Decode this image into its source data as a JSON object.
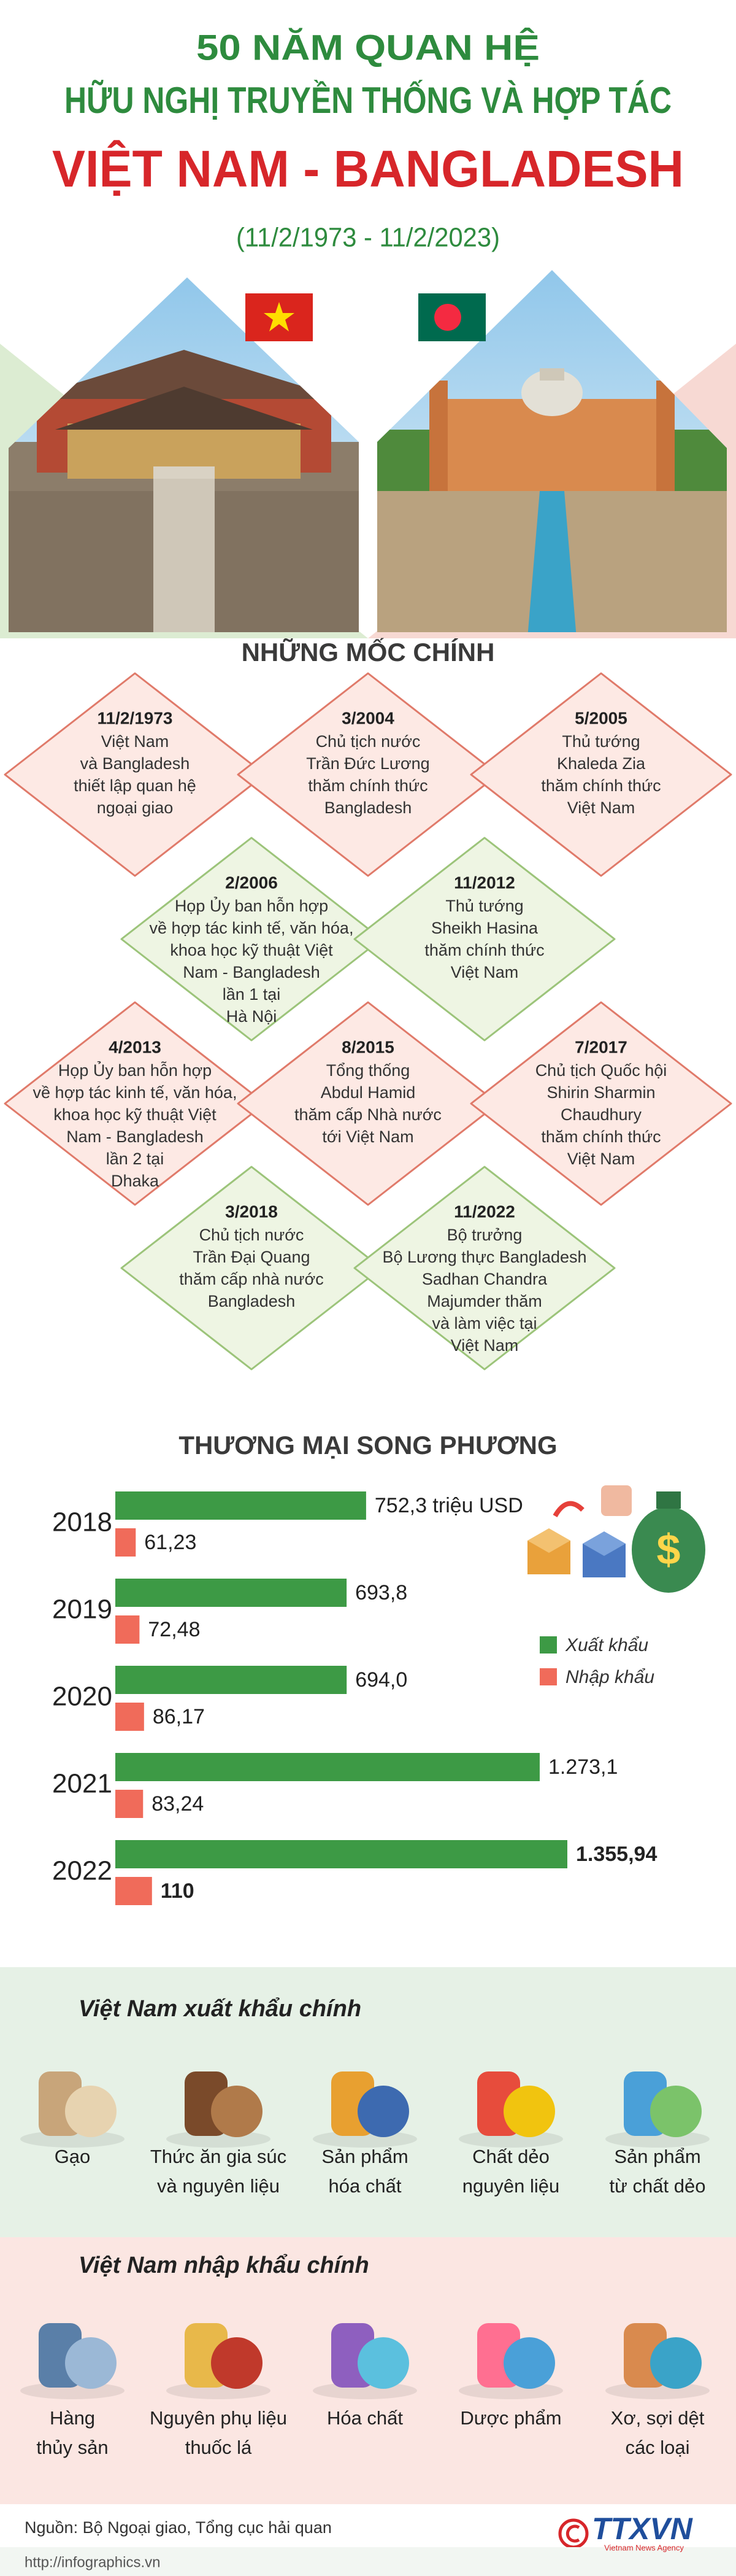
{
  "header": {
    "line1": "50 NĂM QUAN HỆ",
    "line2": "HỮU NGHỊ TRUYỀN THỐNG VÀ HỢP TÁC",
    "line3": "VIỆT NAM - BANGLADESH",
    "dates": "(11/2/1973 - 11/2/2023)"
  },
  "milestones": {
    "title": "NHỮNG MỐC CHÍNH",
    "items": [
      {
        "date": "11/2/1973",
        "text": [
          "Việt Nam",
          "và Bangladesh",
          "thiết lập quan hệ",
          "ngoại giao"
        ]
      },
      {
        "date": "3/2004",
        "text": [
          "Chủ tịch nước",
          "Trần Đức Lương",
          "thăm chính thức",
          "Bangladesh"
        ]
      },
      {
        "date": "5/2005",
        "text": [
          "Thủ tướng",
          "Khaleda Zia",
          "thăm chính thức",
          "Việt Nam"
        ]
      },
      {
        "date": "2/2006",
        "text": [
          "Họp Ủy ban hỗn hợp",
          "về hợp tác kinh tế, văn hóa,",
          "khoa học kỹ thuật Việt",
          "Nam - Bangladesh",
          "lần 1 tại",
          "Hà Nội"
        ]
      },
      {
        "date": "11/2012",
        "text": [
          "Thủ tướng",
          "Sheikh Hasina",
          "thăm chính thức",
          "Việt Nam"
        ]
      },
      {
        "date": "4/2013",
        "text": [
          "Họp Ủy ban hỗn hợp",
          "về hợp tác kinh tế, văn hóa,",
          "khoa học kỹ thuật Việt",
          "Nam - Bangladesh",
          "lần 2 tại",
          "Dhaka"
        ]
      },
      {
        "date": "8/2015",
        "text": [
          "Tổng thống",
          "Abdul Hamid",
          "thăm cấp Nhà nước",
          "tới Việt Nam"
        ]
      },
      {
        "date": "7/2017",
        "text": [
          "Chủ tịch Quốc hội",
          "Shirin Sharmin",
          "Chaudhury",
          "thăm chính thức",
          "Việt Nam"
        ]
      },
      {
        "date": "3/2018",
        "text": [
          "Chủ tịch nước",
          "Trần Đại Quang",
          "thăm cấp nhà nước",
          "Bangladesh"
        ]
      },
      {
        "date": "11/2022",
        "text": [
          "Bộ trưởng",
          "Bộ Lương thực Bangladesh",
          "Sadhan Chandra",
          "Majumder thăm",
          "và làm việc tại",
          "Việt Nam"
        ]
      }
    ]
  },
  "chart_data": {
    "type": "bar",
    "title": "THƯƠNG MẠI SONG PHƯƠNG",
    "categories": [
      "2018",
      "2019",
      "2020",
      "2021",
      "2022"
    ],
    "series": [
      {
        "name": "Xuất khẩu",
        "color": "#3d9a45",
        "values": [
          752.3,
          693.8,
          694.0,
          1273.1,
          1355.94
        ],
        "value_labels": [
          "752,3 triệu USD",
          "693,8",
          "694,0",
          "1.273,1",
          "1.355,94"
        ]
      },
      {
        "name": "Nhập khẩu",
        "color": "#f06b5a",
        "values": [
          61.23,
          72.48,
          86.17,
          83.24,
          110
        ],
        "value_labels": [
          "61,23",
          "72,48",
          "86,17",
          "83,24",
          "110"
        ]
      }
    ]
  },
  "exports": {
    "title": "Việt Nam xuất khẩu chính",
    "items": [
      [
        "Gạo"
      ],
      [
        "Thức ăn gia súc",
        "và nguyên liệu"
      ],
      [
        "Sản phẩm",
        "hóa chất"
      ],
      [
        "Chất dẻo",
        "nguyên liệu"
      ],
      [
        "Sản phẩm",
        "từ chất dẻo"
      ]
    ]
  },
  "imports": {
    "title": "Việt Nam nhập khẩu chính",
    "items": [
      [
        "Hàng",
        "thủy sản"
      ],
      [
        "Nguyên phụ liệu",
        "thuốc lá"
      ],
      [
        "Hóa chất"
      ],
      [
        "Dược phẩm"
      ],
      [
        "Xơ, sợi dệt",
        "các loại"
      ]
    ]
  },
  "footer": {
    "source": "Nguồn: Bộ Ngoại giao, Tổng cục hải quan",
    "logo": "TTXVN",
    "logo_sub": "Vietnam News Agency",
    "url": "http://infographics.vn"
  }
}
